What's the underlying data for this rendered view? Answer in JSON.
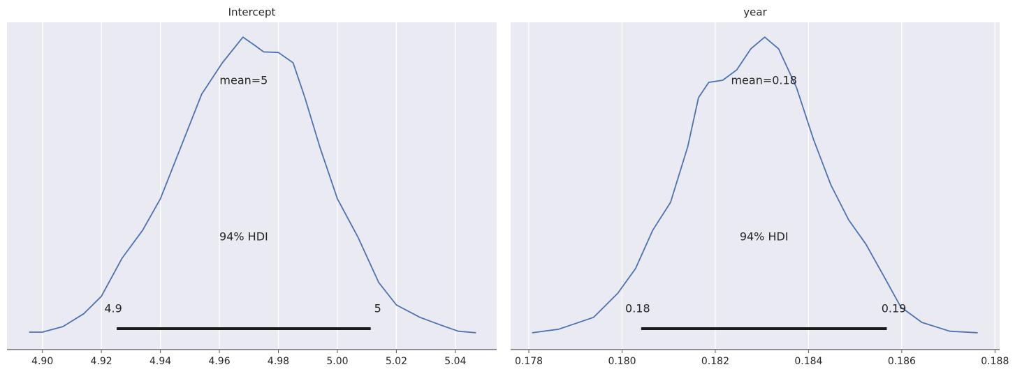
{
  "chart_data": [
    {
      "type": "density",
      "title": "Intercept",
      "color": "#4c72b0",
      "grid": true,
      "x": [
        4.8955,
        4.9,
        4.907,
        4.914,
        4.92,
        4.927,
        4.934,
        4.94,
        4.947,
        4.954,
        4.961,
        4.968,
        4.972,
        4.975,
        4.98,
        4.985,
        4.989,
        4.994,
        5.0,
        5.007,
        5.014,
        5.02,
        5.028,
        5.035,
        5.041,
        5.047
      ],
      "values": [
        0.002,
        0.002,
        0.021,
        0.064,
        0.123,
        0.252,
        0.347,
        0.453,
        0.63,
        0.807,
        0.913,
        1.0,
        0.972,
        0.95,
        0.948,
        0.913,
        0.795,
        0.63,
        0.453,
        0.323,
        0.17,
        0.094,
        0.052,
        0.026,
        0.005,
        0
      ],
      "xlim": [
        4.888,
        5.054
      ],
      "ylim": [
        -0.057,
        1.05
      ],
      "xticks": [
        {
          "value": 4.9,
          "label": "4.90"
        },
        4.92,
        4.94,
        4.96,
        4.98,
        {
          "value": 5.0,
          "label": "5.00"
        },
        5.02,
        5.04
      ],
      "mean_label": "mean=5",
      "hdi_label": "94% HDI",
      "hdi": [
        {
          "value": 4.9252,
          "label": "4.9"
        },
        {
          "value": 5.0113,
          "label": "5"
        }
      ]
    },
    {
      "type": "density",
      "title": "year",
      "color": "#4c72b0",
      "grid": true,
      "x": [
        0.17807,
        0.17864,
        0.17939,
        0.17991,
        0.18029,
        0.18066,
        0.18104,
        0.18141,
        0.18164,
        0.18186,
        0.18216,
        0.18246,
        0.18276,
        0.18306,
        0.18336,
        0.18374,
        0.18411,
        0.18448,
        0.18486,
        0.18523,
        0.18561,
        0.18598,
        0.18643,
        0.18703,
        0.18763
      ],
      "values": [
        0,
        0.012,
        0.052,
        0.134,
        0.217,
        0.347,
        0.441,
        0.63,
        0.795,
        0.847,
        0.854,
        0.889,
        0.96,
        1.0,
        0.96,
        0.83,
        0.653,
        0.5,
        0.382,
        0.3,
        0.193,
        0.087,
        0.035,
        0.005,
        0
      ],
      "xlim": [
        0.17761,
        0.1881
      ],
      "ylim": [
        -0.057,
        1.05
      ],
      "xticks": [
        0.178,
        {
          "value": 0.18,
          "label": "0.180"
        },
        0.182,
        0.184,
        0.186,
        0.188
      ],
      "mean_label": "mean=0.18",
      "hdi_label": "94% HDI",
      "hdi": [
        {
          "value": 0.18041,
          "label": "0.18"
        },
        {
          "value": 0.18568,
          "label": "0.19"
        }
      ]
    }
  ]
}
